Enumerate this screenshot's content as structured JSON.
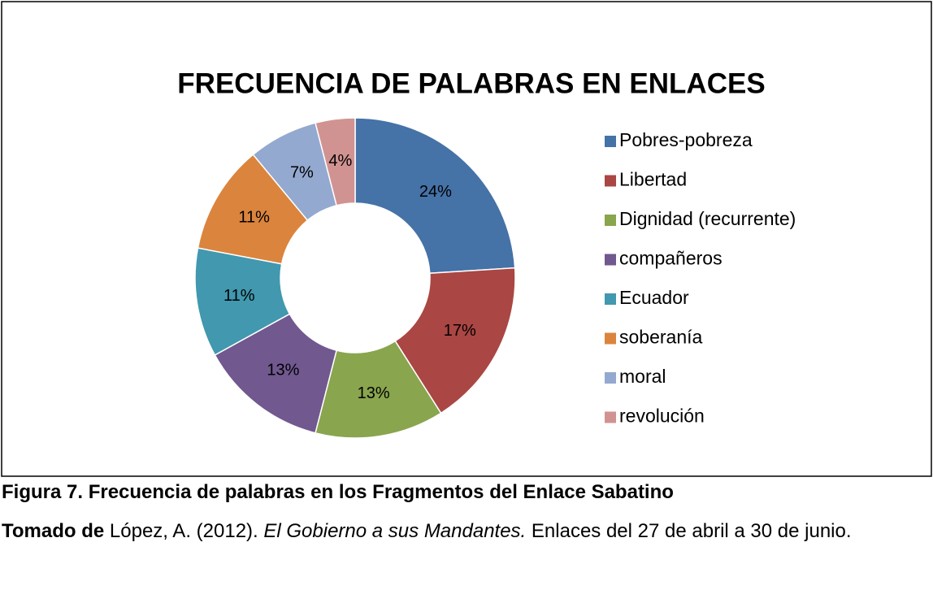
{
  "chart_data": {
    "type": "donut",
    "title": "FRECUENCIA DE PALABRAS EN ENLACES",
    "categories": [
      "Pobres-pobreza",
      "Libertad",
      "Dignidad (recurrente)",
      "compañeros",
      "Ecuador",
      "soberanía",
      "moral",
      "revolución"
    ],
    "values": [
      24,
      17,
      13,
      13,
      11,
      11,
      7,
      4
    ],
    "value_labels": [
      "24%",
      "17%",
      "13%",
      "13%",
      "11%",
      "11%",
      "7%",
      "4%"
    ],
    "colors": [
      "#4572a7",
      "#aa4643",
      "#89a54e",
      "#71588f",
      "#4198af",
      "#db843d",
      "#93a9cf",
      "#d19392"
    ],
    "legend": "right"
  },
  "caption": {
    "figure": "Figura 7. Frecuencia de palabras en los Fragmentos del Enlace Sabatino",
    "source_lead": "Tomado de",
    "source_author": "López, A. (2012).",
    "source_title": "El Gobierno a sus Mandantes.",
    "source_rest": "Enlaces del 27 de abril a 30 de junio."
  }
}
